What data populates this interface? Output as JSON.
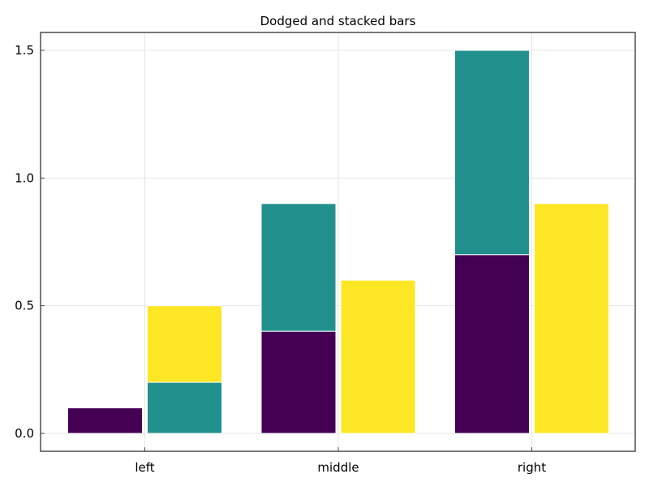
{
  "chart_data": {
    "type": "bar",
    "title": "Dodged and stacked bars",
    "xlabel": "",
    "ylabel": "",
    "categories": [
      "left",
      "middle",
      "right"
    ],
    "ylim": [
      -0.07,
      1.57
    ],
    "yticks": [
      0.0,
      0.5,
      1.0,
      1.5
    ],
    "ytick_labels": [
      "0.0",
      "0.5",
      "1.0",
      "1.5"
    ],
    "grid": true,
    "legend": "none",
    "colors": {
      "purple": "#440154",
      "teal": "#21908d",
      "yellow": "#fde725"
    },
    "bars": [
      {
        "category": "left",
        "dodge": 1,
        "base": 0.0,
        "value": 0.1,
        "color": "purple"
      },
      {
        "category": "left",
        "dodge": 2,
        "base": 0.0,
        "value": 0.2,
        "color": "teal"
      },
      {
        "category": "left",
        "dodge": 2,
        "base": 0.2,
        "value": 0.3,
        "color": "yellow"
      },
      {
        "category": "middle",
        "dodge": 1,
        "base": 0.0,
        "value": 0.4,
        "color": "purple"
      },
      {
        "category": "middle",
        "dodge": 1,
        "base": 0.4,
        "value": 0.5,
        "color": "teal"
      },
      {
        "category": "middle",
        "dodge": 2,
        "base": 0.0,
        "value": 0.6,
        "color": "yellow"
      },
      {
        "category": "right",
        "dodge": 1,
        "base": 0.0,
        "value": 0.7,
        "color": "purple"
      },
      {
        "category": "right",
        "dodge": 1,
        "base": 0.7,
        "value": 0.8,
        "color": "teal"
      },
      {
        "category": "right",
        "dodge": 2,
        "base": 0.0,
        "value": 0.9,
        "color": "yellow"
      }
    ]
  }
}
